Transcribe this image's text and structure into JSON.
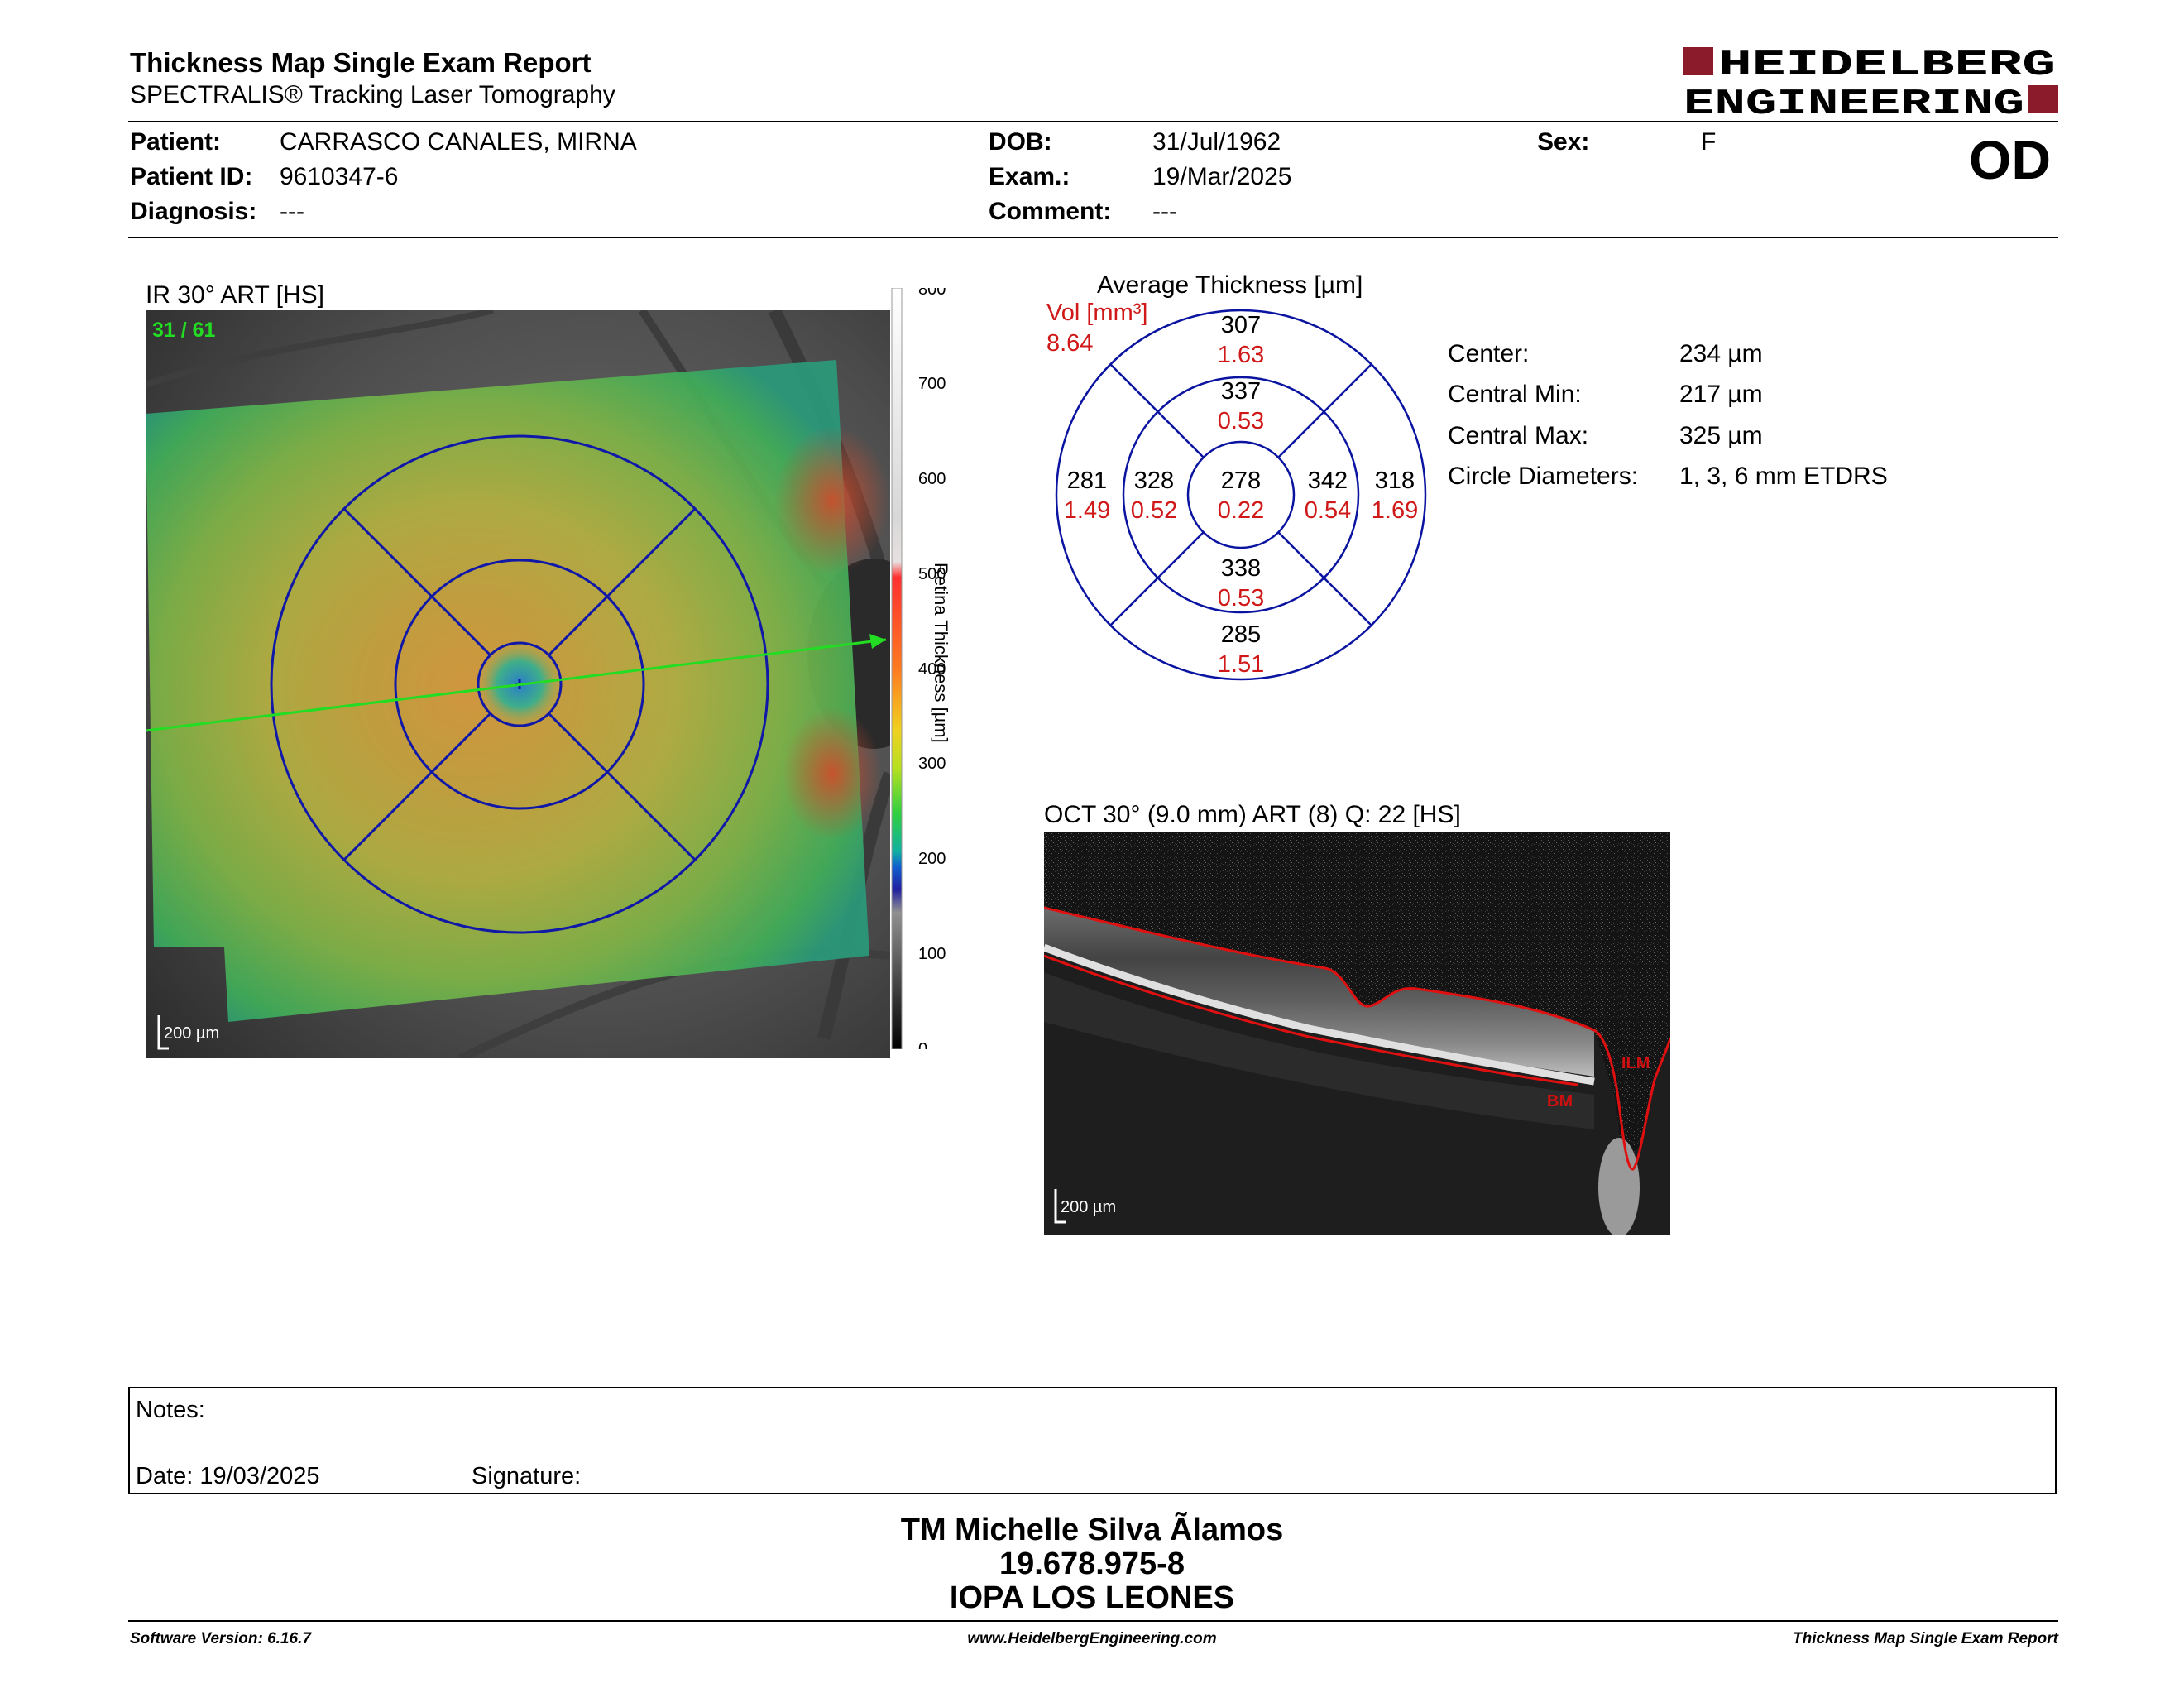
{
  "header": {
    "title": "Thickness Map Single Exam Report",
    "subtitle": "SPECTRALIS® Tracking Laser Tomography",
    "logo_line1": "HEIDELBERG",
    "logo_line2": "ENGINEERING",
    "eye": "OD"
  },
  "patient": {
    "patient_label": "Patient:",
    "patient_name": "CARRASCO CANALES, MIRNA",
    "id_label": "Patient ID:",
    "id": "9610347-6",
    "diagnosis_label": "Diagnosis:",
    "diagnosis": "---",
    "dob_label": "DOB:",
    "dob": "31/Jul/1962",
    "exam_label": "Exam.:",
    "exam": "19/Mar/2025",
    "comment_label": "Comment:",
    "comment": "---",
    "sex_label": "Sex:",
    "sex": "F"
  },
  "ir_image": {
    "title": "IR 30° ART [HS]",
    "frame_counter": "31 / 61",
    "scale_label": "200 µm"
  },
  "colorbar": {
    "label": "Retina Thickness [µm]",
    "ticks": [
      "800",
      "700",
      "600",
      "500",
      "400",
      "300",
      "200",
      "100",
      "0"
    ]
  },
  "etdrs": {
    "title": "Average Thickness [µm]",
    "vol_label": "Vol [mm³]",
    "vol_total": "8.64",
    "outer_top": {
      "thickness": "307",
      "volume": "1.63"
    },
    "inner_top": {
      "thickness": "337",
      "volume": "0.53"
    },
    "outer_left": {
      "thickness": "281",
      "volume": "1.49"
    },
    "inner_left": {
      "thickness": "328",
      "volume": "0.52"
    },
    "center": {
      "thickness": "278",
      "volume": "0.22"
    },
    "inner_right": {
      "thickness": "342",
      "volume": "0.54"
    },
    "outer_right": {
      "thickness": "318",
      "volume": "1.69"
    },
    "inner_bottom": {
      "thickness": "338",
      "volume": "0.53"
    },
    "outer_bottom": {
      "thickness": "285",
      "volume": "1.51"
    }
  },
  "stats": [
    {
      "label": "Center:",
      "value": "234 µm"
    },
    {
      "label": "Central Min:",
      "value": "217 µm"
    },
    {
      "label": "Central Max:",
      "value": "325 µm"
    },
    {
      "label": "Circle Diameters:",
      "value": "1, 3, 6 mm ETDRS"
    }
  ],
  "oct": {
    "title": "OCT 30° (9.0 mm) ART (8) Q: 22 [HS]",
    "ilm_label": "ILM",
    "bm_label": "BM",
    "scale_label": "200 µm"
  },
  "notes": {
    "notes_label": "Notes:",
    "date_text": "Date: 19/03/2025",
    "signature_label": "Signature:"
  },
  "signature_block": {
    "name": "TM Michelle Silva Ãlamos",
    "rut": "19.678.975-8",
    "institution": "IOPA LOS LEONES"
  },
  "footer": {
    "software": "Software Version: 6.16.7",
    "website": "www.HeidelbergEngineering.com",
    "report_name": "Thickness Map Single Exam Report"
  },
  "colors": {
    "etdrs_blue": "#0a14a0",
    "volume_red": "#d01818",
    "logo_red": "#8b1a2a",
    "frame_green": "#22dd22"
  }
}
